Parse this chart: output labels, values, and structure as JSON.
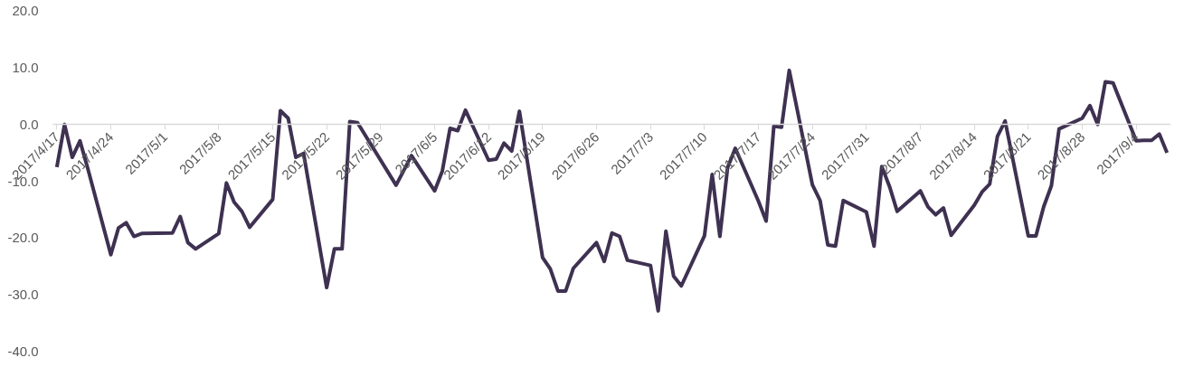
{
  "chart_data": {
    "type": "line",
    "x": [
      "2017-04-17",
      "2017-04-18",
      "2017-04-19",
      "2017-04-20",
      "2017-04-21",
      "2017-04-24",
      "2017-04-25",
      "2017-04-26",
      "2017-04-27",
      "2017-04-28",
      "2017-05-02",
      "2017-05-03",
      "2017-05-04",
      "2017-05-05",
      "2017-05-08",
      "2017-05-09",
      "2017-05-10",
      "2017-05-11",
      "2017-05-12",
      "2017-05-15",
      "2017-05-16",
      "2017-05-17",
      "2017-05-18",
      "2017-05-19",
      "2017-05-22",
      "2017-05-23",
      "2017-05-24",
      "2017-05-25",
      "2017-05-26",
      "2017-05-31",
      "2017-06-01",
      "2017-06-02",
      "2017-06-05",
      "2017-06-06",
      "2017-06-07",
      "2017-06-08",
      "2017-06-09",
      "2017-06-12",
      "2017-06-13",
      "2017-06-14",
      "2017-06-15",
      "2017-06-16",
      "2017-06-19",
      "2017-06-20",
      "2017-06-21",
      "2017-06-22",
      "2017-06-23",
      "2017-06-26",
      "2017-06-27",
      "2017-06-28",
      "2017-06-29",
      "2017-06-30",
      "2017-07-03",
      "2017-07-04",
      "2017-07-05",
      "2017-07-06",
      "2017-07-07",
      "2017-07-10",
      "2017-07-11",
      "2017-07-12",
      "2017-07-13",
      "2017-07-14",
      "2017-07-17",
      "2017-07-18",
      "2017-07-19",
      "2017-07-20",
      "2017-07-21",
      "2017-07-24",
      "2017-07-25",
      "2017-07-26",
      "2017-07-27",
      "2017-07-28",
      "2017-07-31",
      "2017-08-01",
      "2017-08-02",
      "2017-08-03",
      "2017-08-04",
      "2017-08-07",
      "2017-08-08",
      "2017-08-09",
      "2017-08-10",
      "2017-08-11",
      "2017-08-14",
      "2017-08-15",
      "2017-08-16",
      "2017-08-17",
      "2017-08-18",
      "2017-08-21",
      "2017-08-22",
      "2017-08-23",
      "2017-08-24",
      "2017-08-25",
      "2017-08-28",
      "2017-08-29",
      "2017-08-30",
      "2017-08-31",
      "2017-09-01",
      "2017-09-04",
      "2017-09-05",
      "2017-09-06",
      "2017-09-07",
      "2017-09-08"
    ],
    "series": [
      {
        "color": "#3f3151",
        "values": [
          -7.5,
          0.0,
          -5.8,
          -2.9,
          -7.7,
          -22.9,
          -18.2,
          -17.3,
          -19.7,
          -19.2,
          -19.1,
          -16.2,
          -20.8,
          -21.9,
          -19.2,
          -10.3,
          -13.7,
          -15.3,
          -18.1,
          -13.2,
          2.4,
          1.1,
          -5.8,
          -5.1,
          -28.7,
          -21.9,
          -21.9,
          0.5,
          0.3,
          -10.7,
          -8.1,
          -5.5,
          -11.7,
          -8.2,
          -0.7,
          -1.1,
          2.5,
          -6.3,
          -6.1,
          -3.3,
          -4.7,
          2.3,
          -23.4,
          -25.4,
          -29.3,
          -29.3,
          -25.3,
          -20.8,
          -24.1,
          -19.1,
          -19.7,
          -23.9,
          -24.8,
          -32.8,
          -18.8,
          -26.7,
          -28.4,
          -19.6,
          -8.8,
          -19.7,
          -7.6,
          -4.2,
          -13.5,
          -17.0,
          -0.3,
          -0.5,
          9.5,
          -10.6,
          -13.4,
          -21.2,
          -21.4,
          -13.4,
          -15.4,
          -21.4,
          -7.4,
          -10.9,
          -15.3,
          -11.7,
          -14.5,
          -15.9,
          -14.7,
          -19.5,
          -14.2,
          -11.9,
          -10.5,
          -2.1,
          0.6,
          -19.6,
          -19.6,
          -14.5,
          -10.8,
          -0.8,
          1.1,
          3.3,
          0.0,
          7.5,
          7.3,
          -2.9,
          -2.8,
          -2.8,
          -1.7,
          -5.0
        ]
      }
    ],
    "xlim": [
      "2017-04-16T12:00",
      "2017-09-08T12:00"
    ],
    "xticks": [
      {
        "value": "2017-04-17",
        "label": "2017/4/17"
      },
      {
        "value": "2017-04-24",
        "label": "2017/4/24"
      },
      {
        "value": "2017-05-01",
        "label": "2017/5/1"
      },
      {
        "value": "2017-05-08",
        "label": "2017/5/8"
      },
      {
        "value": "2017-05-15",
        "label": "2017/5/15"
      },
      {
        "value": "2017-05-22",
        "label": "2017/5/22"
      },
      {
        "value": "2017-05-29",
        "label": "2017/5/29"
      },
      {
        "value": "2017-06-05",
        "label": "2017/6/5"
      },
      {
        "value": "2017-06-12",
        "label": "2017/6/12"
      },
      {
        "value": "2017-06-19",
        "label": "2017/6/19"
      },
      {
        "value": "2017-06-26",
        "label": "2017/6/26"
      },
      {
        "value": "2017-07-03",
        "label": "2017/7/3"
      },
      {
        "value": "2017-07-10",
        "label": "2017/7/10"
      },
      {
        "value": "2017-07-17",
        "label": "2017/7/17"
      },
      {
        "value": "2017-07-24",
        "label": "2017/7/24"
      },
      {
        "value": "2017-07-31",
        "label": "2017/7/31"
      },
      {
        "value": "2017-08-07",
        "label": "2017/8/7"
      },
      {
        "value": "2017-08-14",
        "label": "2017/8/14"
      },
      {
        "value": "2017-08-21",
        "label": "2017/8/21"
      },
      {
        "value": "2017-08-28",
        "label": "2017/8/28"
      },
      {
        "value": "2017-09-04",
        "label": "2017/9/4"
      }
    ],
    "ylim": [
      -40,
      20
    ],
    "yticks": [
      {
        "value": -40,
        "label": "-40.0"
      },
      {
        "value": -30,
        "label": "-30.0"
      },
      {
        "value": -20,
        "label": "-20.0"
      },
      {
        "value": -10,
        "label": "-10.0"
      },
      {
        "value": 0,
        "label": "0.0"
      },
      {
        "value": 10,
        "label": "10.0"
      },
      {
        "value": 20,
        "label": "20.0"
      }
    ],
    "marker": "none",
    "line_style": "solid"
  }
}
